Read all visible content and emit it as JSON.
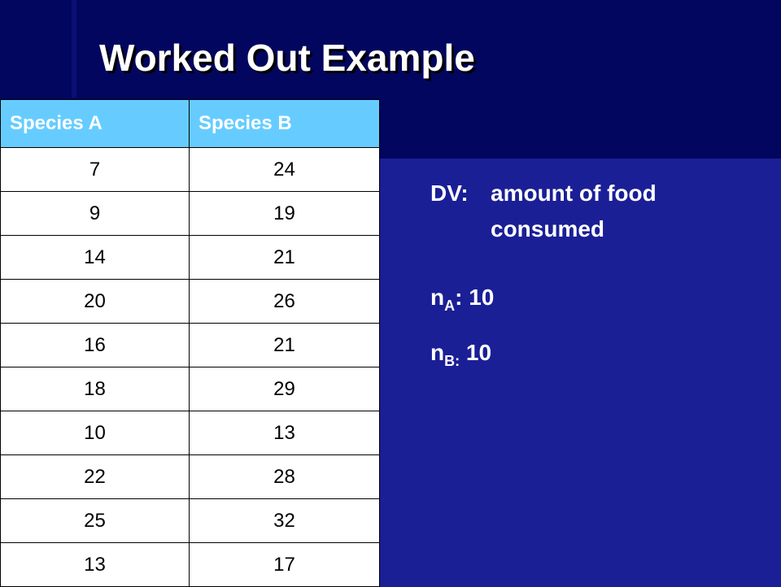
{
  "title": "Worked Out Example",
  "table": {
    "headers": [
      "Species A",
      "Species B"
    ],
    "rows": [
      [
        "7",
        "24"
      ],
      [
        "9",
        "19"
      ],
      [
        "14",
        "21"
      ],
      [
        "20",
        "26"
      ],
      [
        "16",
        "21"
      ],
      [
        "18",
        "29"
      ],
      [
        "10",
        "13"
      ],
      [
        "22",
        "28"
      ],
      [
        "25",
        "32"
      ],
      [
        "13",
        "17"
      ]
    ]
  },
  "notes": {
    "dv_label": "DV:",
    "dv_text": "amount of food consumed",
    "na_base": "n",
    "na_sub": "A",
    "na_value": ": 10",
    "nb_base": "n",
    "nb_sub": "B:",
    "nb_value": " 10"
  },
  "colors": {
    "background": "#1a1f96",
    "header_band": "#02065e",
    "table_header": "#66ccff",
    "text": "#ffffff"
  }
}
